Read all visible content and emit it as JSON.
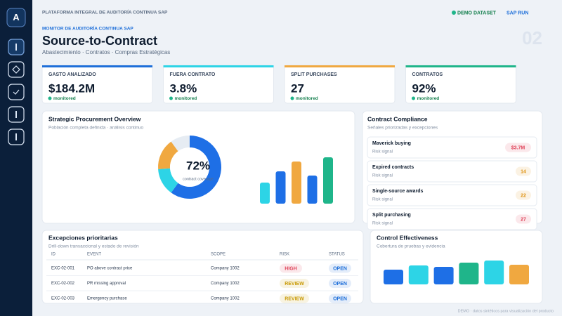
{
  "sidebar": {
    "logo": "A"
  },
  "header": {
    "platform": "PLATAFORMA INTEGRAL DE AUDITORÍA CONTINUA SAP",
    "status": "DEMO DATASET",
    "run": "SAP RUN",
    "eyebrow": "MONITOR DE AUDITORÍA CONTINUA SAP",
    "title": "Source-to-Contract",
    "subtitle": "Abastecimiento · Contratos · Compras Estratégicas",
    "page_number": "02"
  },
  "kpis": [
    {
      "label": "GASTO ANALIZADO",
      "value": "$184.2M",
      "status": "monitored",
      "color": "#1e6fd9"
    },
    {
      "label": "FUERA CONTRATO",
      "value": "3.8%",
      "status": "monitored",
      "color": "#2dd4e6"
    },
    {
      "label": "SPLIT PURCHASES",
      "value": "27",
      "status": "monitored",
      "color": "#f0a840"
    },
    {
      "label": "CONTRATOS",
      "value": "92%",
      "status": "monitored",
      "color": "#1fb58a"
    }
  ],
  "overview": {
    "title": "Strategic Procurement Overview",
    "subtitle": "Población completa definida · análisis continuo",
    "donut": {
      "type": "pie",
      "center_label": "72%",
      "center_sublabel": "contract coverage",
      "values": [
        60,
        14,
        16,
        10
      ],
      "colors": [
        "#1e6fe6",
        "#2dd4e6",
        "#f0a840",
        "#e6ecf3"
      ]
    },
    "bars": {
      "type": "bar",
      "values": [
        30,
        46,
        60,
        40,
        66
      ],
      "colors": [
        "#2dd4e6",
        "#1e6fe6",
        "#f0a840",
        "#1e6fe6",
        "#1fb58a"
      ]
    }
  },
  "compliance": {
    "title": "Contract Compliance",
    "subtitle": "Señales priorizadas y excepciones",
    "items": [
      {
        "name": "Maverick buying",
        "detail": "Risk signal",
        "badge": "$3.7M",
        "badge_color": "#e0445a"
      },
      {
        "name": "Expired contracts",
        "detail": "Risk signal",
        "badge": "14",
        "badge_color": "#e0961a"
      },
      {
        "name": "Single-source awards",
        "detail": "Risk signal",
        "badge": "22",
        "badge_color": "#e0961a"
      },
      {
        "name": "Split purchasing",
        "detail": "Risk signal",
        "badge": "27",
        "badge_color": "#e0445a"
      }
    ]
  },
  "exceptions": {
    "title": "Excepciones prioritarias",
    "subtitle": "Drill-down transaccional y estado de revisión",
    "columns": [
      "ID",
      "EVENT",
      "SCOPE",
      "RISK",
      "STATUS"
    ],
    "rows": [
      {
        "id": "EXC-02-001",
        "event": "PO above contract price",
        "scope": "Company 1002",
        "risk": "HIGH",
        "risk_color": "#e0445a",
        "status": "OPEN"
      },
      {
        "id": "EXC-02-002",
        "event": "PR missing approval",
        "scope": "Company 1002",
        "risk": "REVIEW",
        "risk_color": "#c99a06",
        "status": "OPEN"
      },
      {
        "id": "EXC-02-003",
        "event": "Emergency purchase",
        "scope": "Company 1002",
        "risk": "REVIEW",
        "risk_color": "#c99a06",
        "status": "OPEN"
      }
    ],
    "status_color": "#1e6fd9"
  },
  "control": {
    "title": "Control Effectiveness",
    "subtitle": "Cobertura de pruebas y evidencia",
    "bars": {
      "type": "bar",
      "values": [
        21,
        27,
        25,
        31,
        34,
        28
      ],
      "colors": [
        "#1e6fe6",
        "#2dd4e6",
        "#1e6fe6",
        "#1fb58a",
        "#2dd4e6",
        "#f0a840"
      ]
    }
  },
  "footer": "DEMO · datos sintéticos para visualización del producto"
}
